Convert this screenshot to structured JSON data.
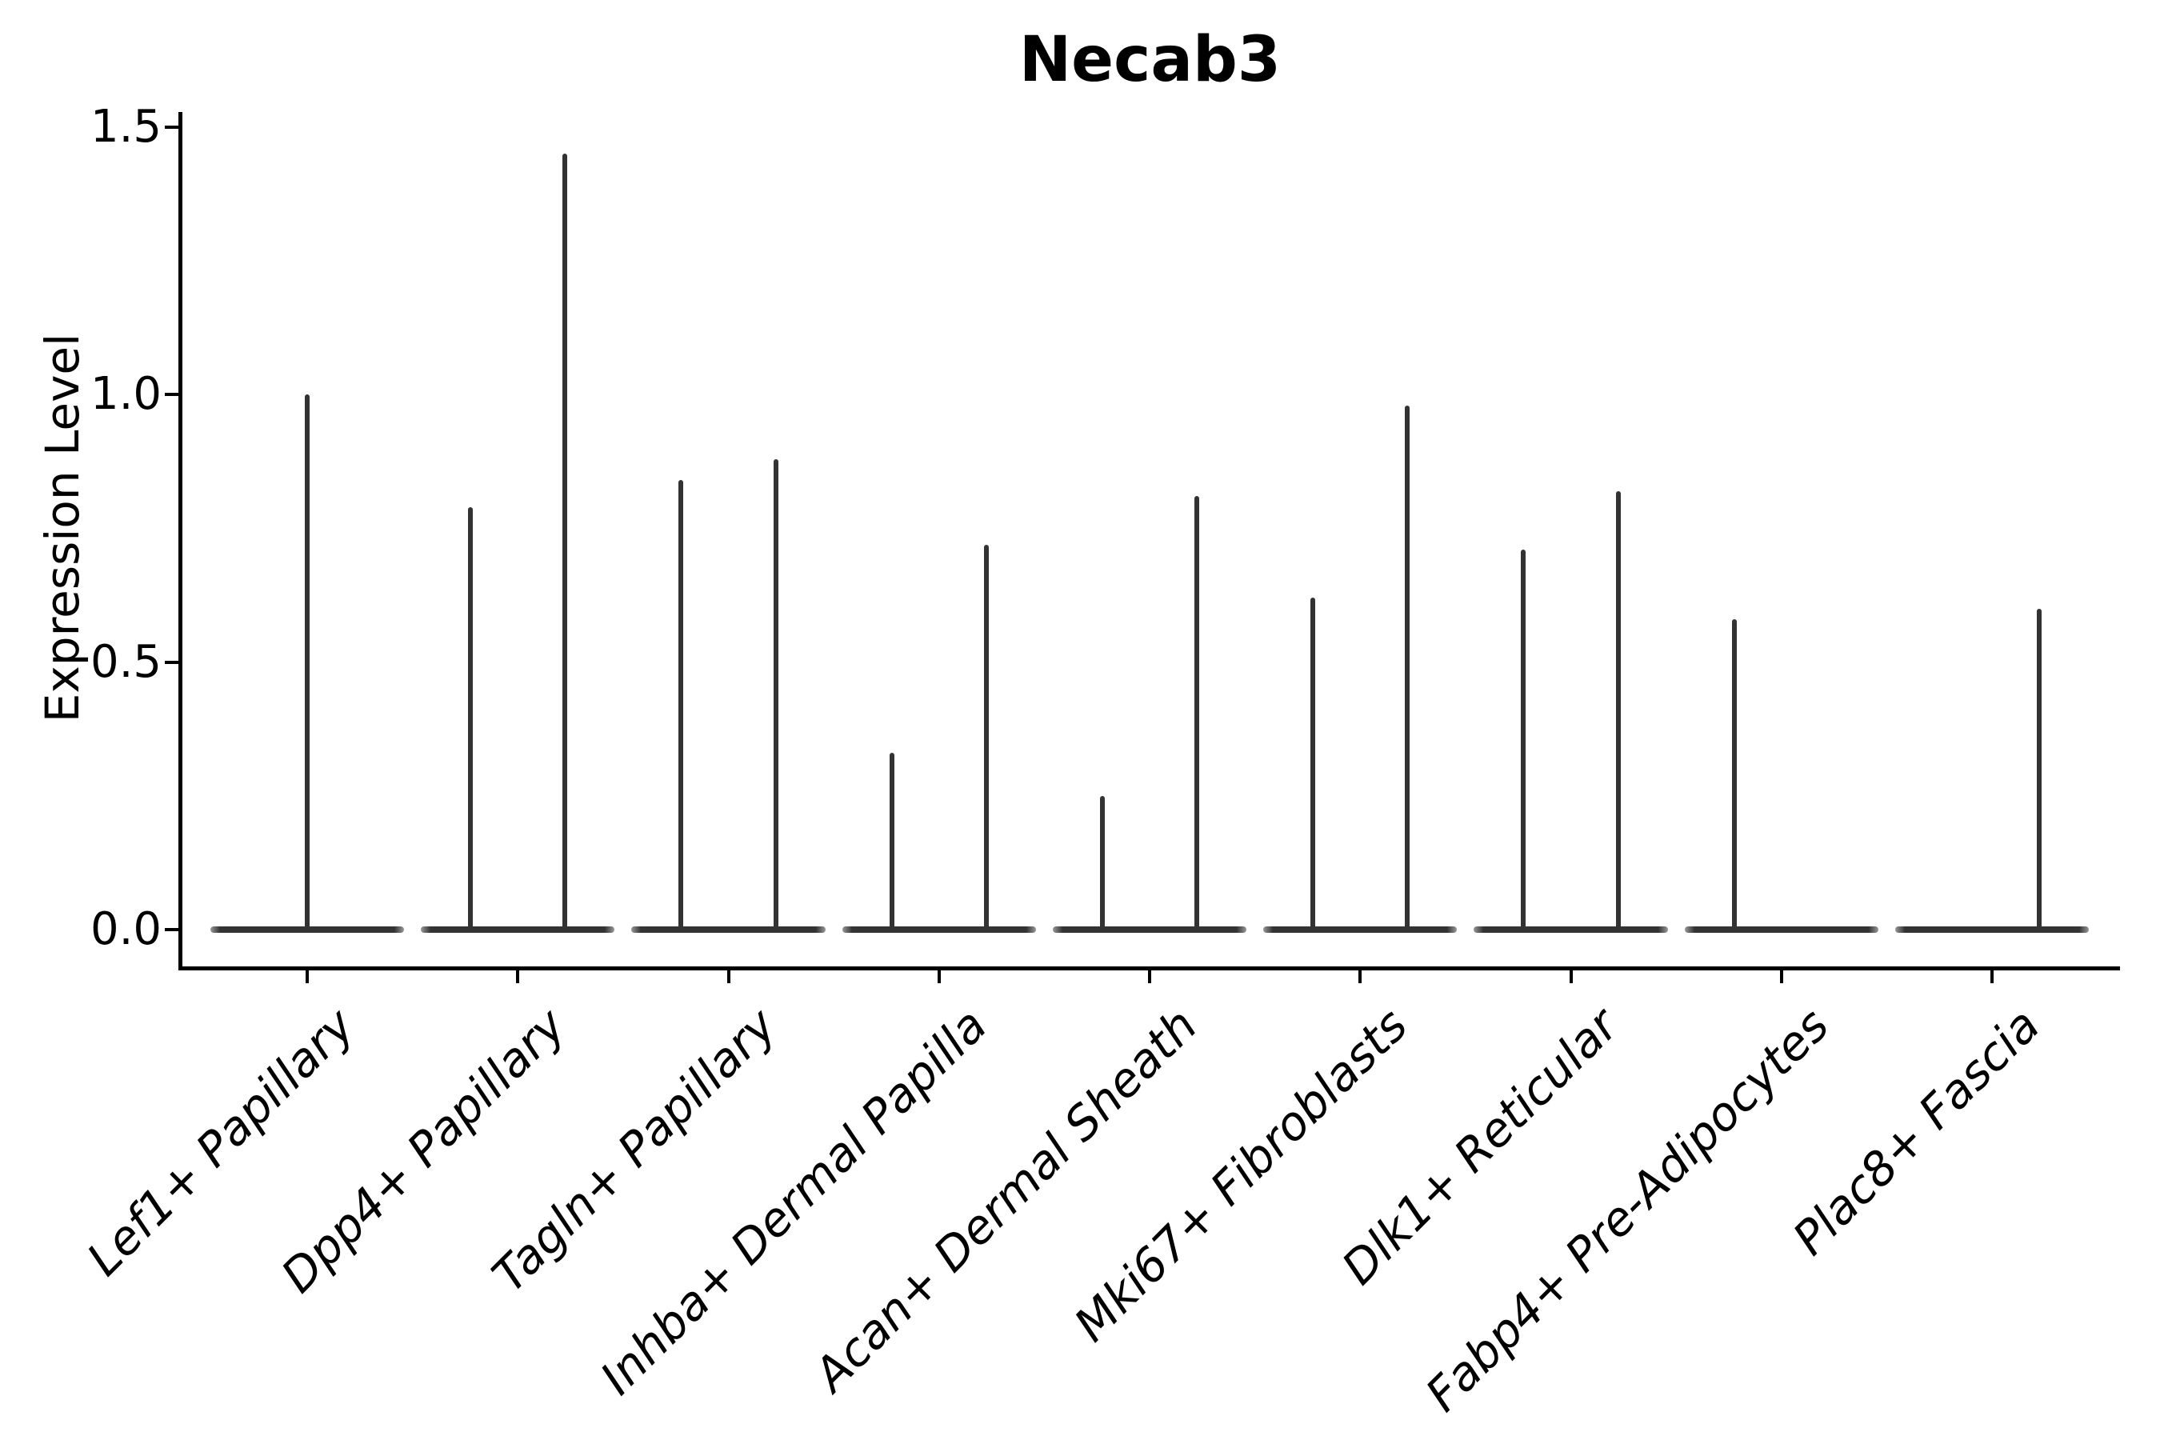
{
  "figure": {
    "background": "#ffffff",
    "line_color": "#333333",
    "axis_color": "#000000"
  },
  "chart_data": {
    "type": "violin",
    "title": "Necab3",
    "ylabel": "Expression Level",
    "xlabel": "",
    "grid": false,
    "legend": null,
    "ylim": [
      -0.07,
      1.53
    ],
    "ytick_labels": [
      "0.0",
      "0.5",
      "1.0",
      "1.5"
    ],
    "ytick_values": [
      0.0,
      0.5,
      1.0,
      1.5
    ],
    "categories": [
      "Lef1+ Papillary",
      "Dpp4+ Papillary",
      "Tagln+ Papillary",
      "Inhba+ Dermal Papilla",
      "Acan+ Dermal Sheath",
      "Mki67+ Fibroblasts",
      "Dlk1+ Reticular",
      "Fabp4+ Pre-Adipocytes",
      "Plac8+ Fascia"
    ],
    "violin_halfwidth": 0.46,
    "violin_color": "#333333",
    "violins": [
      {
        "category": "Lef1+ Papillary",
        "spikes": [
          {
            "offset": 0.0,
            "max": 1.0
          }
        ]
      },
      {
        "category": "Dpp4+ Papillary",
        "spikes": [
          {
            "offset": -0.225,
            "max": 0.79
          },
          {
            "offset": 0.225,
            "max": 1.45
          }
        ]
      },
      {
        "category": "Tagln+ Papillary",
        "spikes": [
          {
            "offset": -0.225,
            "max": 0.84
          },
          {
            "offset": 0.225,
            "max": 0.88
          }
        ]
      },
      {
        "category": "Inhba+ Dermal Papilla",
        "spikes": [
          {
            "offset": -0.225,
            "max": 0.33
          },
          {
            "offset": 0.225,
            "max": 0.72
          }
        ]
      },
      {
        "category": "Acan+ Dermal Sheath",
        "spikes": [
          {
            "offset": -0.225,
            "max": 0.25
          },
          {
            "offset": 0.225,
            "max": 0.81
          }
        ]
      },
      {
        "category": "Mki67+ Fibroblasts",
        "spikes": [
          {
            "offset": -0.225,
            "max": 0.62
          },
          {
            "offset": 0.225,
            "max": 0.98
          }
        ]
      },
      {
        "category": "Dlk1+ Reticular",
        "spikes": [
          {
            "offset": -0.225,
            "max": 0.71
          },
          {
            "offset": 0.225,
            "max": 0.82
          }
        ]
      },
      {
        "category": "Fabp4+ Pre-Adipocytes",
        "spikes": [
          {
            "offset": -0.225,
            "max": 0.58
          }
        ]
      },
      {
        "category": "Plac8+ Fascia",
        "spikes": [
          {
            "offset": 0.225,
            "max": 0.6
          }
        ]
      }
    ]
  }
}
